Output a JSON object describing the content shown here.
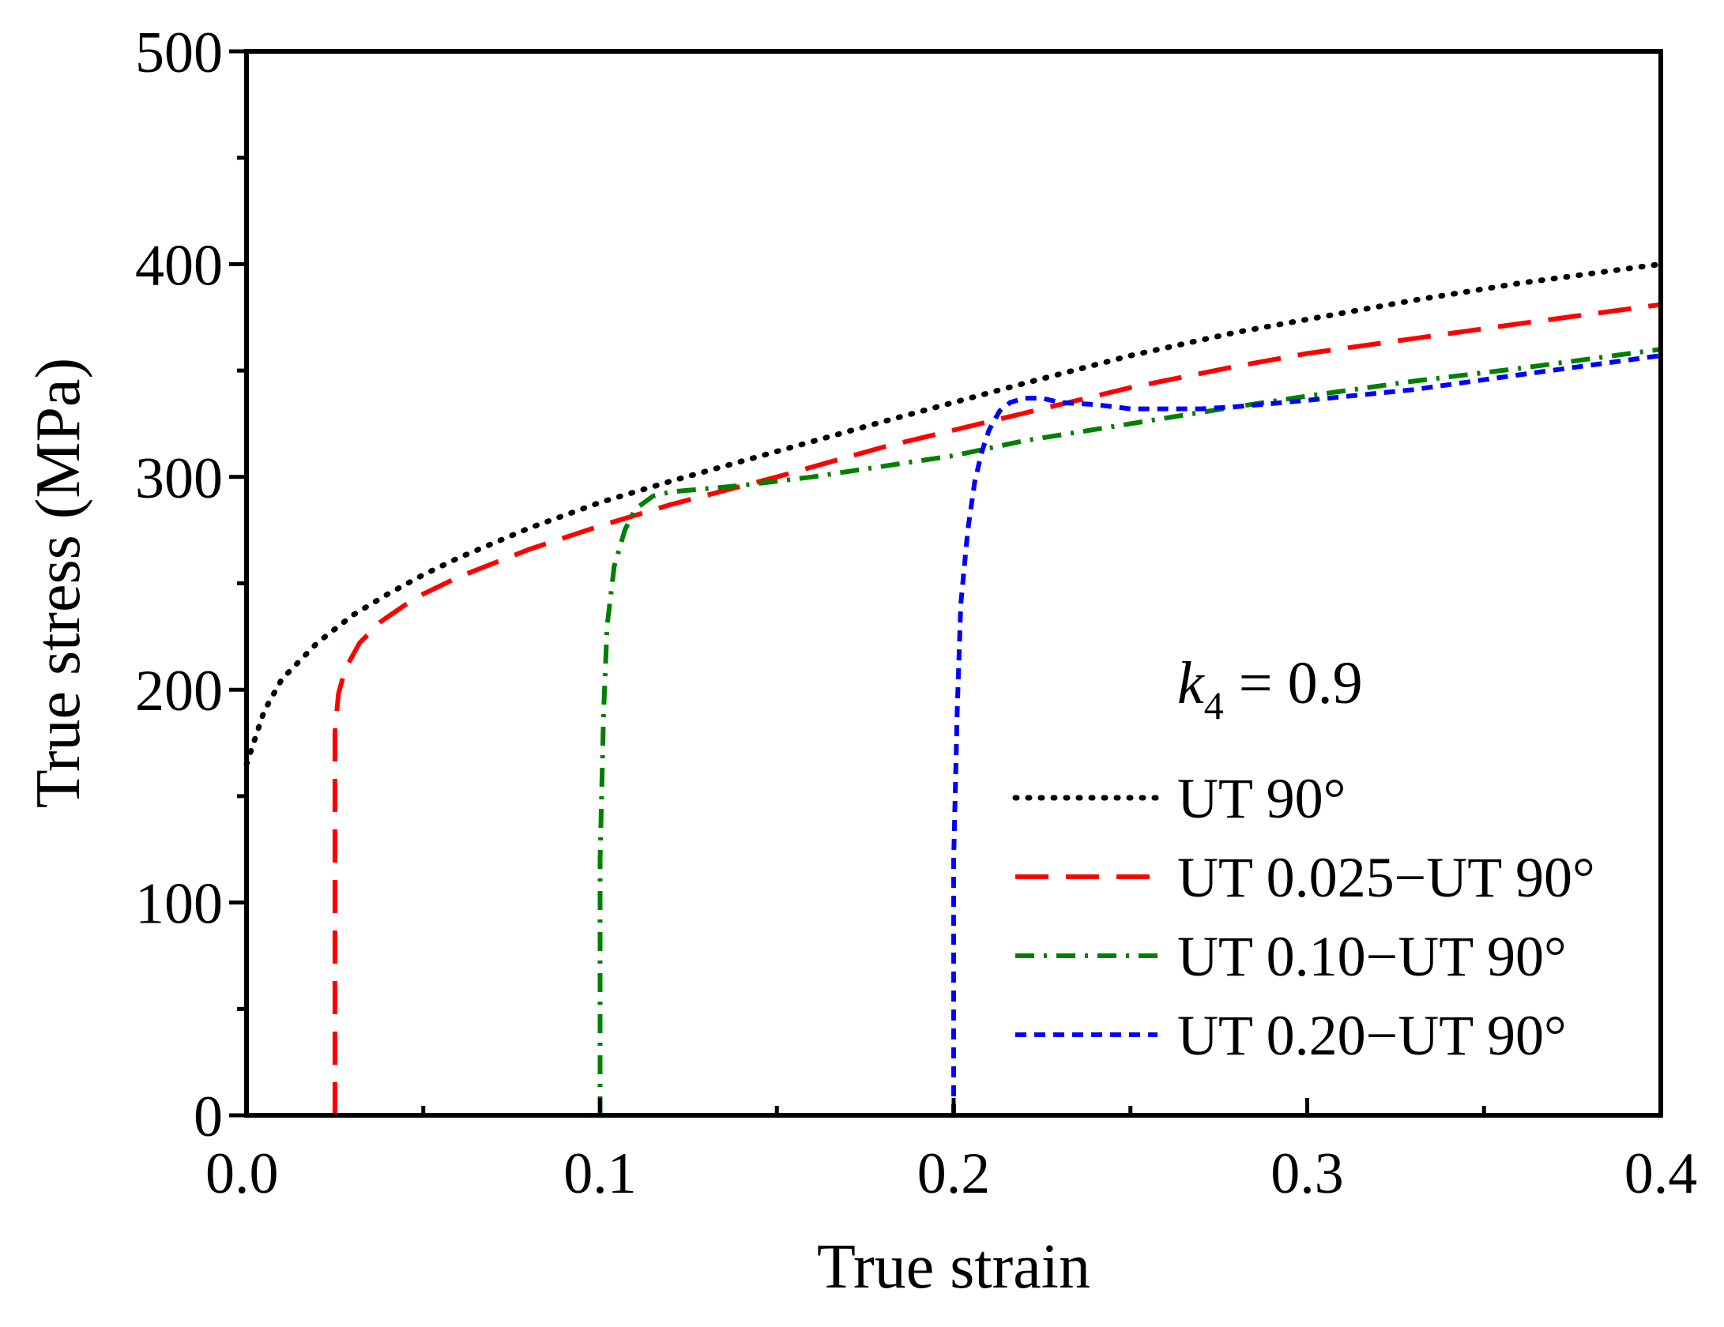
{
  "chart_data": {
    "type": "line",
    "title": "",
    "xlabel": "True strain",
    "ylabel": "True stress (MPa)",
    "xlim": [
      0.0,
      0.4
    ],
    "ylim": [
      0,
      500
    ],
    "xticks": [
      0.0,
      0.1,
      0.2,
      0.3,
      0.4
    ],
    "xtick_labels": [
      "0.0",
      "0.1",
      "0.2",
      "0.3",
      "0.4"
    ],
    "yticks": [
      0,
      100,
      200,
      300,
      400,
      500
    ],
    "ytick_labels": [
      "0",
      "100",
      "200",
      "300",
      "400",
      "500"
    ],
    "grid": false,
    "legend_position": "lower-right",
    "annotation": {
      "symbol": "k",
      "subscript": "4",
      "text": " = 0.9"
    },
    "series": [
      {
        "name": "UT 90°",
        "color": "#000000",
        "style": "dotted",
        "x": [
          0.0,
          0.005,
          0.01,
          0.02,
          0.03,
          0.04,
          0.05,
          0.06,
          0.08,
          0.1,
          0.12,
          0.15,
          0.18,
          0.2,
          0.22,
          0.25,
          0.28,
          0.3,
          0.33,
          0.36,
          0.4
        ],
        "y": [
          165,
          190,
          205,
          222,
          235,
          245,
          254,
          262,
          276,
          288,
          298,
          312,
          326,
          335,
          344,
          357,
          368,
          374,
          383,
          391,
          400
        ]
      },
      {
        "name": "UT 0.025−UT 90°",
        "color": "#ff0000",
        "style": "dashed",
        "x": [
          0.025,
          0.025,
          0.025,
          0.026,
          0.028,
          0.032,
          0.038,
          0.045,
          0.05,
          0.06,
          0.08,
          0.1,
          0.12,
          0.15,
          0.18,
          0.2,
          0.22,
          0.25,
          0.28,
          0.3,
          0.33,
          0.36,
          0.4
        ],
        "y": [
          0,
          100,
          180,
          198,
          210,
          222,
          232,
          240,
          245,
          253,
          266,
          277,
          287,
          300,
          314,
          322,
          330,
          342,
          352,
          358,
          365,
          372,
          381
        ]
      },
      {
        "name": "UT 0.10−UT 90°",
        "color": "#008000",
        "style": "dashdot",
        "x": [
          0.1,
          0.1,
          0.101,
          0.102,
          0.104,
          0.107,
          0.11,
          0.115,
          0.12,
          0.14,
          0.16,
          0.18,
          0.2,
          0.22,
          0.25,
          0.28,
          0.3,
          0.33,
          0.36,
          0.4
        ],
        "y": [
          0,
          120,
          190,
          230,
          258,
          275,
          285,
          291,
          293,
          296,
          300,
          305,
          310,
          317,
          325,
          333,
          338,
          345,
          351,
          360
        ]
      },
      {
        "name": "UT 0.20−UT 90°",
        "color": "#0000ff",
        "style": "short-dashed",
        "x": [
          0.2,
          0.2,
          0.201,
          0.202,
          0.204,
          0.206,
          0.208,
          0.21,
          0.213,
          0.216,
          0.22,
          0.225,
          0.23,
          0.24,
          0.25,
          0.26,
          0.27,
          0.28,
          0.3,
          0.33,
          0.36,
          0.4
        ],
        "y": [
          0,
          120,
          190,
          240,
          275,
          298,
          312,
          322,
          331,
          335,
          337,
          337,
          335,
          334,
          332,
          332,
          332,
          333,
          336,
          341,
          348,
          357
        ]
      }
    ]
  }
}
